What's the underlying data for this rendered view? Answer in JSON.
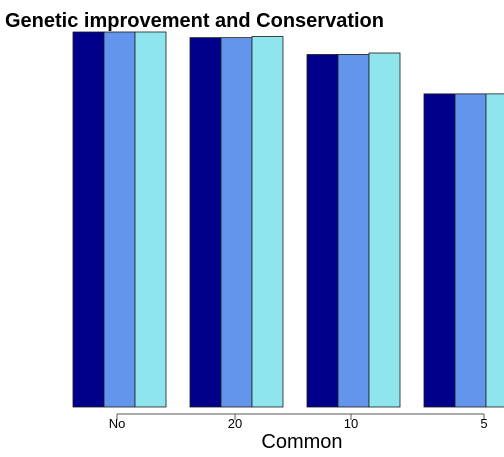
{
  "chart_data": {
    "type": "bar",
    "title": "Genetic improvement and Conservation",
    "xlabel": "Common",
    "ylabel": "",
    "categories": [
      "No",
      "20",
      "10",
      "5"
    ],
    "series": [
      {
        "color": "#00008B",
        "values": [
          1.0,
          0.985,
          0.94,
          0.835
        ]
      },
      {
        "color": "#6495ED",
        "values": [
          1.0,
          0.985,
          0.94,
          0.835
        ]
      },
      {
        "color": "#8EE5EE",
        "values": [
          1.0,
          0.988,
          0.944,
          0.835
        ]
      }
    ],
    "ylim": [
      0,
      1.0
    ],
    "grid": false,
    "legend": "none"
  }
}
